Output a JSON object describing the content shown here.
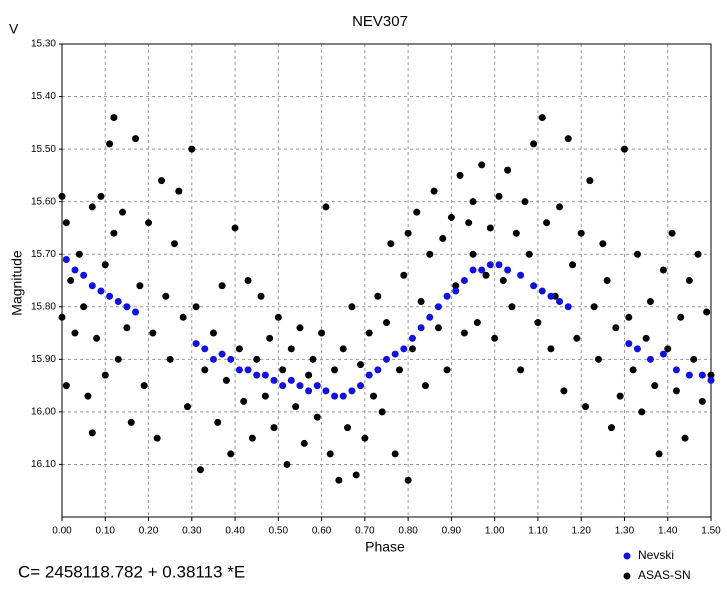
{
  "chart_data": {
    "type": "scatter",
    "title": "NEV307",
    "corner_label": "V",
    "xlabel": "Phase",
    "ylabel": "Magnitude",
    "annotation": "C= 2458118.782 + 0.38113 *E",
    "xlim": [
      0,
      1.5
    ],
    "ylim": [
      15.3,
      16.2
    ],
    "y_inverted": true,
    "grid": true,
    "legend": "lower right",
    "xticks": [
      {
        "value": 0,
        "label": "0.00"
      },
      {
        "value": 0.1,
        "label": "0.10"
      },
      {
        "value": 0.2,
        "label": "0.20"
      },
      {
        "value": 0.3,
        "label": "0.30"
      },
      {
        "value": 0.4,
        "label": "0.40"
      },
      {
        "value": 0.5,
        "label": "0.50"
      },
      {
        "value": 0.6,
        "label": "0.60"
      },
      {
        "value": 0.7,
        "label": "0.70"
      },
      {
        "value": 0.8,
        "label": "0.80"
      },
      {
        "value": 0.9,
        "label": "0.90"
      },
      {
        "value": 1.0,
        "label": "1.00"
      },
      {
        "value": 1.1,
        "label": "1.10"
      },
      {
        "value": 1.2,
        "label": "1.20"
      },
      {
        "value": 1.3,
        "label": "1.30"
      },
      {
        "value": 1.4,
        "label": "1.40"
      },
      {
        "value": 1.5,
        "label": "1.50"
      }
    ],
    "yticks": [
      {
        "value": 15.3,
        "label": "15.30"
      },
      {
        "value": 15.4,
        "label": "15.40"
      },
      {
        "value": 15.5,
        "label": "15.50"
      },
      {
        "value": 15.6,
        "label": "15.60"
      },
      {
        "value": 15.7,
        "label": "15.70"
      },
      {
        "value": 15.8,
        "label": "15.80"
      },
      {
        "value": 15.9,
        "label": "15.90"
      },
      {
        "value": 16.0,
        "label": "16.00"
      },
      {
        "value": 16.1,
        "label": "16.10"
      }
    ],
    "series": [
      {
        "name": "Nevski",
        "color": "#1010e0",
        "x": [
          0.01,
          0.03,
          0.05,
          0.07,
          0.09,
          0.11,
          0.13,
          0.15,
          0.17,
          0.31,
          0.33,
          0.35,
          0.37,
          0.39,
          0.41,
          0.43,
          0.45,
          0.47,
          0.49,
          0.51,
          0.53,
          0.55,
          0.57,
          0.59,
          0.61,
          0.63,
          0.65,
          0.67,
          0.69,
          0.71,
          0.73,
          0.75,
          0.77,
          0.79,
          0.81,
          0.83,
          0.85,
          0.87,
          0.89,
          0.91,
          0.93,
          0.95,
          0.97,
          0.99,
          1.01,
          1.03,
          1.06,
          1.09,
          1.11,
          1.13,
          1.15,
          1.17,
          1.31,
          1.33,
          1.36,
          1.39,
          1.42,
          1.45,
          1.48,
          1.5
        ],
        "values": [
          15.71,
          15.73,
          15.74,
          15.76,
          15.77,
          15.78,
          15.79,
          15.8,
          15.81,
          15.87,
          15.88,
          15.9,
          15.89,
          15.9,
          15.92,
          15.92,
          15.93,
          15.93,
          15.94,
          15.95,
          15.94,
          15.95,
          15.96,
          15.95,
          15.96,
          15.97,
          15.97,
          15.96,
          15.95,
          15.93,
          15.92,
          15.9,
          15.89,
          15.88,
          15.86,
          15.84,
          15.82,
          15.8,
          15.78,
          15.77,
          15.75,
          15.73,
          15.73,
          15.72,
          15.72,
          15.73,
          15.74,
          15.76,
          15.77,
          15.78,
          15.79,
          15.8,
          15.87,
          15.88,
          15.9,
          15.89,
          15.92,
          15.93,
          15.93,
          15.94
        ]
      },
      {
        "name": "ASAS-SN",
        "color": "#000000",
        "x": [
          0,
          0,
          0.01,
          0.01,
          0.02,
          0.03,
          0.04,
          0.05,
          0.06,
          0.07,
          0.07,
          0.08,
          0.09,
          0.1,
          0.1,
          0.11,
          0.12,
          0.12,
          0.13,
          0.14,
          0.15,
          0.16,
          0.17,
          0.18,
          0.19,
          0.2,
          0.21,
          0.22,
          0.23,
          0.24,
          0.25,
          0.26,
          0.27,
          0.28,
          0.29,
          0.3,
          0.31,
          0.32,
          0.33,
          0.35,
          0.36,
          0.37,
          0.38,
          0.39,
          0.4,
          0.41,
          0.42,
          0.43,
          0.44,
          0.45,
          0.46,
          0.47,
          0.48,
          0.49,
          0.5,
          0.51,
          0.52,
          0.53,
          0.54,
          0.55,
          0.56,
          0.57,
          0.58,
          0.59,
          0.6,
          0.61,
          0.62,
          0.63,
          0.64,
          0.65,
          0.66,
          0.67,
          0.68,
          0.69,
          0.7,
          0.71,
          0.72,
          0.73,
          0.74,
          0.75,
          0.76,
          0.77,
          0.78,
          0.79,
          0.8,
          0.8,
          0.81,
          0.82,
          0.83,
          0.84,
          0.85,
          0.86,
          0.87,
          0.88,
          0.89,
          0.9,
          0.91,
          0.92,
          0.93,
          0.94,
          0.95,
          0.95,
          0.96,
          0.97,
          0.98,
          0.99,
          1.0,
          1.01,
          1.02,
          1.03,
          1.04,
          1.05,
          1.06,
          1.07,
          1.08,
          1.09,
          1.1,
          1.11,
          1.12,
          1.13,
          1.14,
          1.15,
          1.16,
          1.17,
          1.18,
          1.19,
          1.2,
          1.21,
          1.22,
          1.23,
          1.24,
          1.25,
          1.26,
          1.27,
          1.28,
          1.29,
          1.3,
          1.31,
          1.32,
          1.33,
          1.34,
          1.35,
          1.36,
          1.37,
          1.38,
          1.39,
          1.4,
          1.41,
          1.42,
          1.43,
          1.44,
          1.45,
          1.46,
          1.47,
          1.48,
          1.49,
          1.5
        ],
        "values": [
          15.59,
          15.82,
          15.95,
          15.64,
          15.75,
          15.85,
          15.7,
          15.8,
          15.97,
          15.61,
          16.04,
          15.86,
          15.59,
          15.72,
          15.93,
          15.49,
          15.44,
          15.66,
          15.9,
          15.62,
          15.84,
          16.02,
          15.48,
          15.76,
          15.95,
          15.64,
          15.85,
          16.05,
          15.56,
          15.78,
          15.9,
          15.68,
          15.58,
          15.82,
          15.99,
          15.5,
          15.8,
          16.11,
          15.92,
          15.85,
          16.02,
          15.76,
          15.94,
          16.08,
          15.65,
          15.88,
          15.98,
          15.75,
          16.05,
          15.9,
          15.78,
          15.97,
          15.86,
          16.03,
          15.82,
          15.92,
          16.1,
          15.88,
          15.99,
          15.84,
          16.06,
          15.93,
          15.9,
          16.01,
          15.85,
          15.61,
          16.08,
          15.92,
          16.13,
          15.88,
          16.03,
          15.8,
          16.12,
          15.91,
          16.05,
          15.85,
          15.97,
          15.78,
          16.0,
          15.83,
          15.68,
          16.08,
          15.92,
          15.74,
          16.13,
          15.66,
          15.88,
          15.62,
          15.79,
          15.95,
          15.7,
          15.58,
          15.84,
          15.67,
          15.92,
          15.63,
          15.76,
          15.55,
          15.85,
          15.64,
          15.7,
          15.6,
          15.83,
          15.53,
          15.74,
          15.65,
          15.86,
          15.59,
          15.75,
          15.54,
          15.8,
          15.66,
          15.92,
          15.6,
          15.7,
          15.49,
          15.83,
          15.44,
          15.64,
          15.88,
          15.78,
          15.61,
          15.96,
          15.48,
          15.72,
          15.86,
          15.66,
          15.99,
          15.56,
          15.8,
          15.9,
          15.68,
          15.75,
          16.03,
          15.84,
          15.97,
          15.5,
          15.82,
          15.92,
          15.7,
          16.0,
          15.86,
          15.79,
          15.95,
          16.08,
          15.73,
          15.88,
          15.66,
          15.96,
          15.82,
          16.05,
          15.75,
          15.9,
          15.7,
          15.98,
          15.81,
          15.93
        ]
      }
    ]
  }
}
